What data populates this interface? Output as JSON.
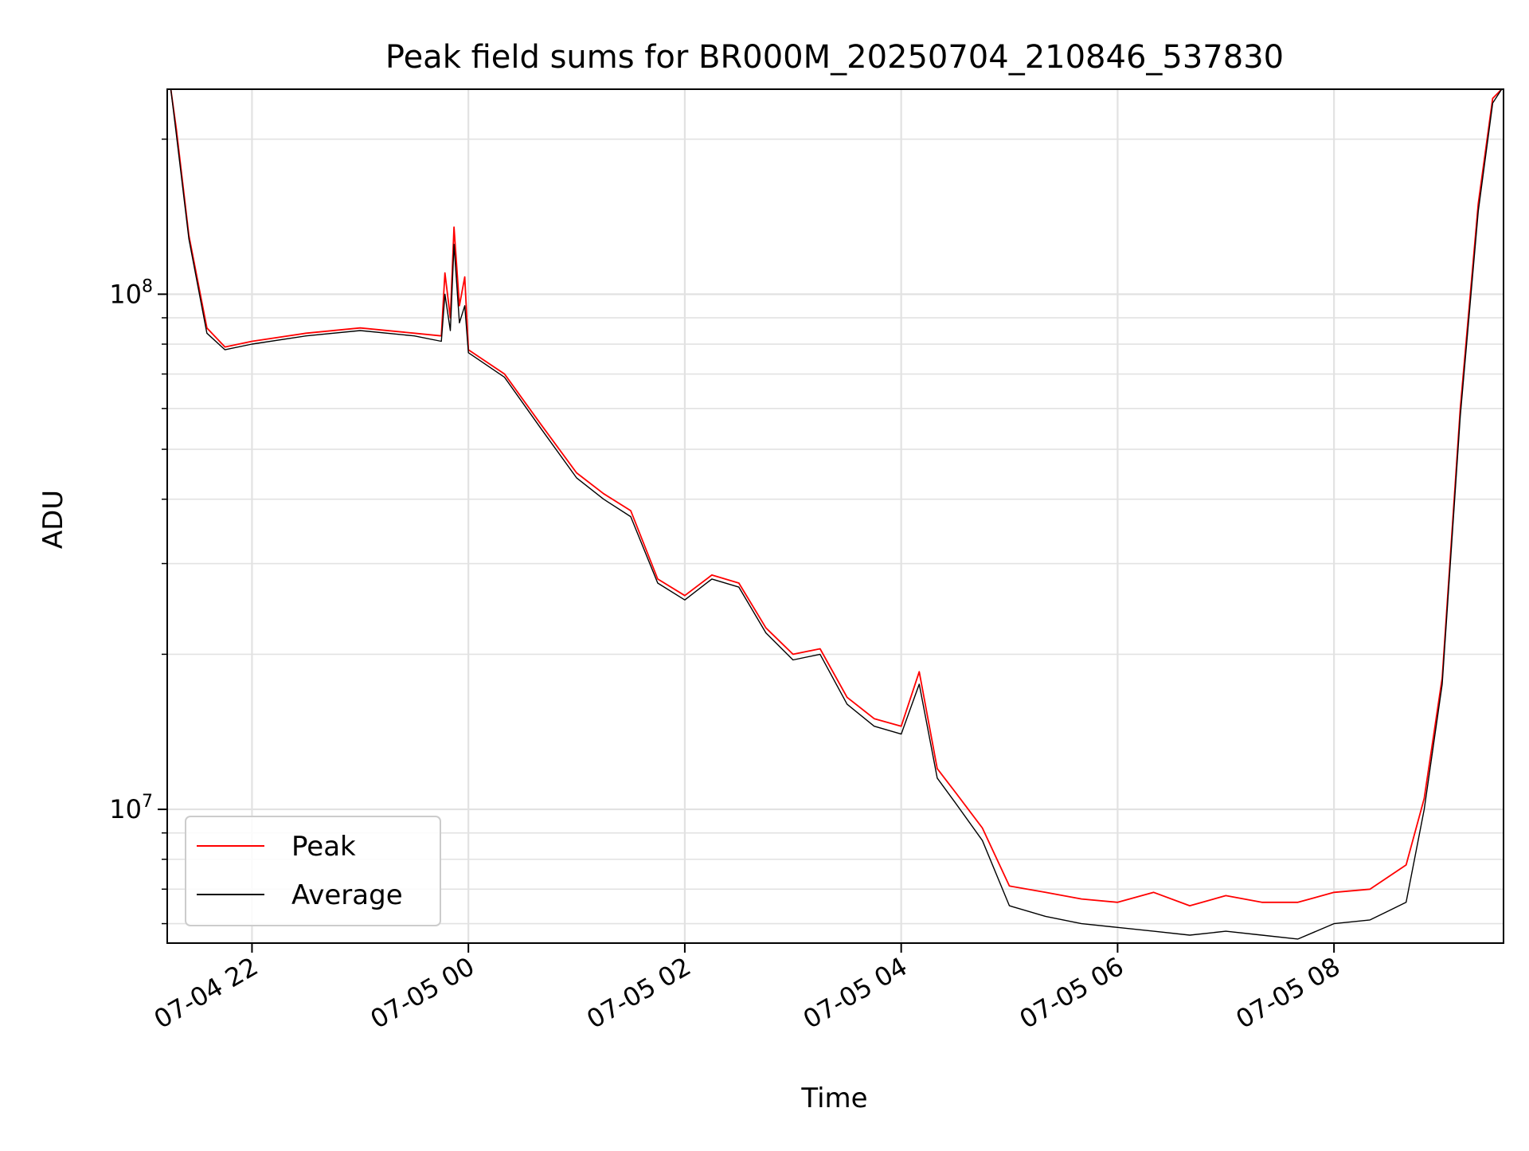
{
  "chart_data": {
    "type": "line",
    "title": "Peak field sums for BR000M_20250704_210846_537830",
    "xlabel": "Time",
    "ylabel": "ADU",
    "x_unit": "time",
    "y_scale": "log",
    "xlim": [
      "2025-07-04 21:13",
      "2025-07-05 09:34"
    ],
    "ylim": [
      5500000,
      250000000
    ],
    "grid": true,
    "legend_position": "lower-left",
    "x_ticks": [
      {
        "t": "2025-07-04 22:00",
        "label": "07-04 22"
      },
      {
        "t": "2025-07-05 00:00",
        "label": "07-05 00"
      },
      {
        "t": "2025-07-05 02:00",
        "label": "07-05 02"
      },
      {
        "t": "2025-07-05 04:00",
        "label": "07-05 04"
      },
      {
        "t": "2025-07-05 06:00",
        "label": "07-05 06"
      },
      {
        "t": "2025-07-05 08:00",
        "label": "07-05 08"
      }
    ],
    "y_ticks_major": [
      {
        "value": 10000000,
        "base": "10",
        "exp": "7"
      },
      {
        "value": 100000000,
        "base": "10",
        "exp": "8"
      }
    ],
    "series": [
      {
        "name": "Peak",
        "color": "#ff0000",
        "x": [
          "2025-07-04 21:15",
          "2025-07-04 21:18",
          "2025-07-04 21:25",
          "2025-07-04 21:35",
          "2025-07-04 21:45",
          "2025-07-04 22:00",
          "2025-07-04 22:30",
          "2025-07-04 23:00",
          "2025-07-04 23:30",
          "2025-07-04 23:45",
          "2025-07-04 23:47",
          "2025-07-04 23:50",
          "2025-07-04 23:52",
          "2025-07-04 23:55",
          "2025-07-04 23:58",
          "2025-07-05 00:00",
          "2025-07-05 00:20",
          "2025-07-05 00:40",
          "2025-07-05 01:00",
          "2025-07-05 01:15",
          "2025-07-05 01:30",
          "2025-07-05 01:45",
          "2025-07-05 02:00",
          "2025-07-05 02:15",
          "2025-07-05 02:30",
          "2025-07-05 02:45",
          "2025-07-05 03:00",
          "2025-07-05 03:15",
          "2025-07-05 03:30",
          "2025-07-05 03:45",
          "2025-07-05 04:00",
          "2025-07-05 04:10",
          "2025-07-05 04:20",
          "2025-07-05 04:30",
          "2025-07-05 04:45",
          "2025-07-05 05:00",
          "2025-07-05 05:20",
          "2025-07-05 05:40",
          "2025-07-05 06:00",
          "2025-07-05 06:20",
          "2025-07-05 06:40",
          "2025-07-05 07:00",
          "2025-07-05 07:20",
          "2025-07-05 07:40",
          "2025-07-05 08:00",
          "2025-07-05 08:20",
          "2025-07-05 08:40",
          "2025-07-05 08:50",
          "2025-07-05 09:00",
          "2025-07-05 09:10",
          "2025-07-05 09:20",
          "2025-07-05 09:28",
          "2025-07-05 09:33"
        ],
        "y": [
          250000000,
          210000000,
          130000000,
          86000000,
          79000000,
          81000000,
          84000000,
          86000000,
          84000000,
          83000000,
          110000000,
          90000000,
          135000000,
          95000000,
          108000000,
          78000000,
          70000000,
          56000000,
          45000000,
          41000000,
          38000000,
          28000000,
          26000000,
          28500000,
          27500000,
          22500000,
          20000000,
          20500000,
          16500000,
          15000000,
          14500000,
          18500000,
          12000000,
          10800000,
          9200000,
          7100000,
          6900000,
          6700000,
          6600000,
          6900000,
          6500000,
          6800000,
          6600000,
          6600000,
          6900000,
          7000000,
          7800000,
          10500000,
          18000000,
          60000000,
          150000000,
          240000000,
          250000000
        ]
      },
      {
        "name": "Average",
        "color": "#000000",
        "x": [
          "2025-07-04 21:15",
          "2025-07-04 21:18",
          "2025-07-04 21:25",
          "2025-07-04 21:35",
          "2025-07-04 21:45",
          "2025-07-04 22:00",
          "2025-07-04 22:30",
          "2025-07-04 23:00",
          "2025-07-04 23:30",
          "2025-07-04 23:45",
          "2025-07-04 23:47",
          "2025-07-04 23:50",
          "2025-07-04 23:52",
          "2025-07-04 23:55",
          "2025-07-04 23:58",
          "2025-07-05 00:00",
          "2025-07-05 00:20",
          "2025-07-05 00:40",
          "2025-07-05 01:00",
          "2025-07-05 01:15",
          "2025-07-05 01:30",
          "2025-07-05 01:45",
          "2025-07-05 02:00",
          "2025-07-05 02:15",
          "2025-07-05 02:30",
          "2025-07-05 02:45",
          "2025-07-05 03:00",
          "2025-07-05 03:15",
          "2025-07-05 03:30",
          "2025-07-05 03:45",
          "2025-07-05 04:00",
          "2025-07-05 04:10",
          "2025-07-05 04:20",
          "2025-07-05 04:30",
          "2025-07-05 04:45",
          "2025-07-05 05:00",
          "2025-07-05 05:20",
          "2025-07-05 05:40",
          "2025-07-05 06:00",
          "2025-07-05 06:20",
          "2025-07-05 06:40",
          "2025-07-05 07:00",
          "2025-07-05 07:20",
          "2025-07-05 07:40",
          "2025-07-05 08:00",
          "2025-07-05 08:20",
          "2025-07-05 08:40",
          "2025-07-05 08:50",
          "2025-07-05 09:00",
          "2025-07-05 09:10",
          "2025-07-05 09:20",
          "2025-07-05 09:28",
          "2025-07-05 09:33"
        ],
        "y": [
          250000000,
          205000000,
          128000000,
          84000000,
          78000000,
          80000000,
          83000000,
          85000000,
          83000000,
          81000000,
          100000000,
          85000000,
          125000000,
          88000000,
          95000000,
          77000000,
          69000000,
          55000000,
          44000000,
          40000000,
          37000000,
          27500000,
          25500000,
          28000000,
          27000000,
          22000000,
          19500000,
          20000000,
          16000000,
          14500000,
          14000000,
          17500000,
          11500000,
          10300000,
          8700000,
          6500000,
          6200000,
          6000000,
          5900000,
          5800000,
          5700000,
          5800000,
          5700000,
          5600000,
          6000000,
          6100000,
          6600000,
          10000000,
          17500000,
          58000000,
          145000000,
          235000000,
          250000000
        ]
      }
    ]
  }
}
